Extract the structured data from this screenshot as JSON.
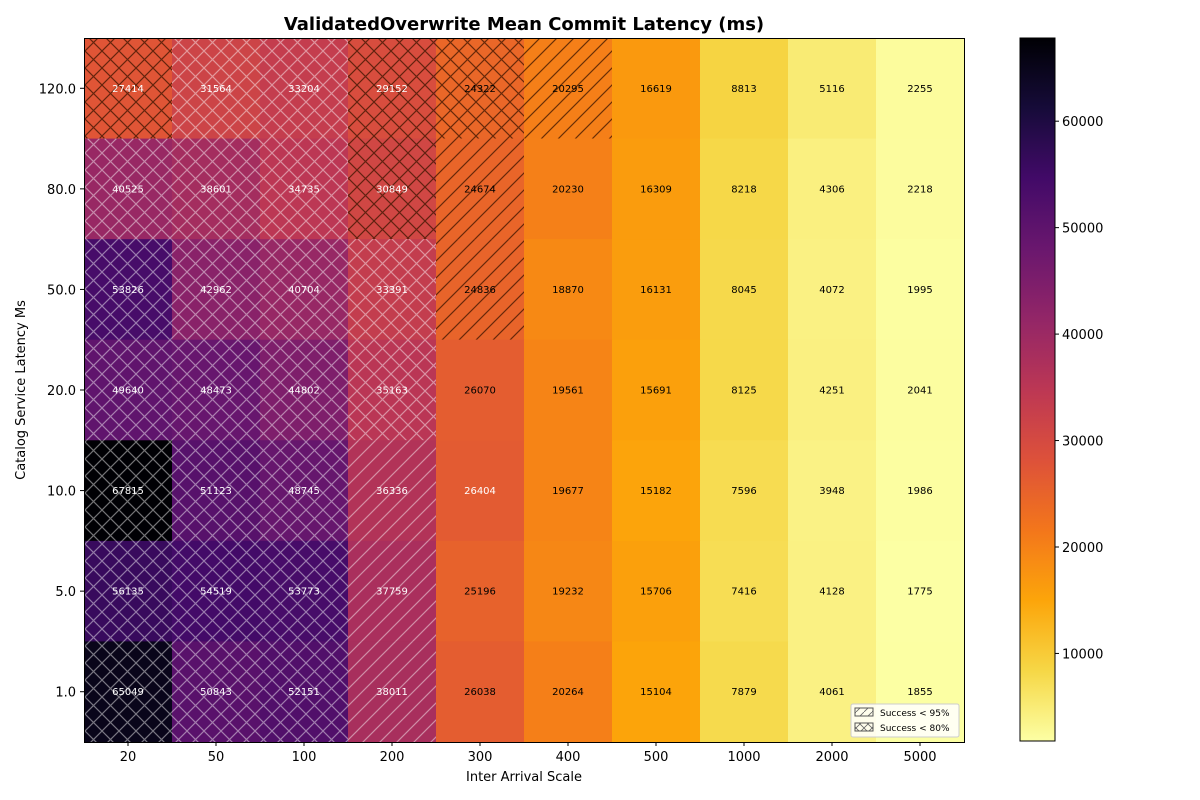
{
  "chart_data": {
    "type": "heatmap",
    "title": "ValidatedOverwrite Mean Commit Latency (ms)",
    "xlabel": "Inter Arrival Scale",
    "ylabel": "Catalog Service Latency Ms",
    "x_categories": [
      "20",
      "50",
      "100",
      "200",
      "300",
      "400",
      "500",
      "1000",
      "2000",
      "5000"
    ],
    "y_categories_top_to_bottom": [
      "120.0",
      "80.0",
      "50.0",
      "20.0",
      "10.0",
      "5.0",
      "1.0"
    ],
    "values": [
      [
        27414,
        31564,
        33204,
        29152,
        24322,
        20295,
        16619,
        8813,
        5116,
        2255
      ],
      [
        40525,
        38601,
        34735,
        30849,
        24674,
        20230,
        16309,
        8218,
        4306,
        2218
      ],
      [
        53826,
        42962,
        40704,
        33391,
        24836,
        18870,
        16131,
        8045,
        4072,
        1995
      ],
      [
        49640,
        48473,
        44802,
        35163,
        26070,
        19561,
        15691,
        8125,
        4251,
        2041
      ],
      [
        67815,
        51123,
        48745,
        36336,
        26404,
        19677,
        15182,
        7596,
        3948,
        1986
      ],
      [
        56135,
        54519,
        53773,
        37759,
        25196,
        19232,
        15706,
        7416,
        4128,
        1775
      ],
      [
        65049,
        50843,
        52151,
        38011,
        26038,
        20264,
        15104,
        7879,
        4061,
        1855
      ]
    ],
    "hatch": [
      [
        "xx",
        "xx",
        "xx",
        "xx",
        "xx",
        "//",
        "",
        "",
        "",
        ""
      ],
      [
        "xx",
        "xx",
        "xx",
        "xx",
        "//",
        "",
        "",
        "",
        "",
        ""
      ],
      [
        "xx",
        "xx",
        "xx",
        "xx",
        "//",
        "",
        "",
        "",
        "",
        ""
      ],
      [
        "xx",
        "xx",
        "xx",
        "xx",
        "",
        "",
        "",
        "",
        "",
        ""
      ],
      [
        "xx",
        "xx",
        "xx",
        "//",
        "",
        "",
        "",
        "",
        "",
        ""
      ],
      [
        "xx",
        "xx",
        "xx",
        "//",
        "",
        "",
        "",
        "",
        "",
        ""
      ],
      [
        "xx",
        "xx",
        "xx",
        "//",
        "",
        "",
        "",
        "",
        "",
        ""
      ]
    ],
    "colormap": "inferno_r",
    "colorbar": {
      "range": [
        1775,
        67815
      ],
      "ticks": [
        10000,
        20000,
        30000,
        40000,
        50000,
        60000
      ],
      "tick_labels": [
        "10000",
        "20000",
        "30000",
        "40000",
        "50000",
        "60000"
      ]
    },
    "legend": {
      "placement": "lower-right",
      "entries": [
        {
          "hatch": "//",
          "label": "Success < 95%"
        },
        {
          "hatch": "xx",
          "label": "Success < 80%"
        }
      ]
    },
    "grid": false
  }
}
